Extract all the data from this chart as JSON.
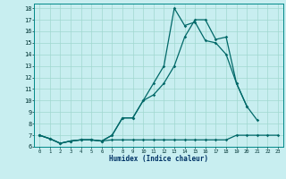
{
  "xlabel": "Humidex (Indice chaleur)",
  "background_color": "#c8eef0",
  "grid_color": "#a0d8d0",
  "line_color": "#006868",
  "xlim": [
    -0.5,
    23.5
  ],
  "ylim": [
    6,
    18.4
  ],
  "xticks": [
    0,
    1,
    2,
    3,
    4,
    5,
    6,
    7,
    8,
    9,
    10,
    11,
    12,
    13,
    14,
    15,
    16,
    17,
    18,
    19,
    20,
    21,
    22,
    23
  ],
  "yticks": [
    6,
    7,
    8,
    9,
    10,
    11,
    12,
    13,
    14,
    15,
    16,
    17,
    18
  ],
  "curve1_x": [
    0,
    1,
    2,
    3,
    4,
    5,
    6,
    7,
    8,
    9,
    10,
    11,
    12,
    13,
    14,
    15,
    16,
    17,
    18,
    19,
    20,
    21,
    22,
    23
  ],
  "curve1_y": [
    7.0,
    6.7,
    6.3,
    6.5,
    6.6,
    6.6,
    6.5,
    6.6,
    6.6,
    6.6,
    6.6,
    6.6,
    6.6,
    6.6,
    6.6,
    6.6,
    6.6,
    6.6,
    6.6,
    7.0,
    7.0,
    7.0,
    7.0,
    7.0
  ],
  "curve2_x": [
    0,
    1,
    2,
    3,
    4,
    5,
    6,
    7,
    8,
    9,
    10,
    11,
    12,
    13,
    14,
    15,
    16,
    17,
    18,
    19,
    20,
    21,
    22,
    23
  ],
  "curve2_y": [
    7.0,
    6.7,
    6.3,
    6.5,
    6.6,
    6.6,
    6.5,
    7.0,
    8.5,
    8.5,
    10.0,
    10.5,
    11.5,
    13.0,
    15.5,
    17.0,
    17.0,
    15.3,
    15.5,
    11.5,
    9.5,
    8.3,
    null,
    null
  ],
  "curve3_x": [
    0,
    1,
    2,
    3,
    4,
    5,
    6,
    7,
    8,
    9,
    10,
    11,
    12,
    13,
    14,
    15,
    16,
    17,
    18,
    19,
    20
  ],
  "curve3_y": [
    7.0,
    6.7,
    6.3,
    6.5,
    6.6,
    6.6,
    6.5,
    7.0,
    8.5,
    8.5,
    10.0,
    11.5,
    13.0,
    18.0,
    16.5,
    16.8,
    15.2,
    15.0,
    14.0,
    11.5,
    9.5
  ]
}
